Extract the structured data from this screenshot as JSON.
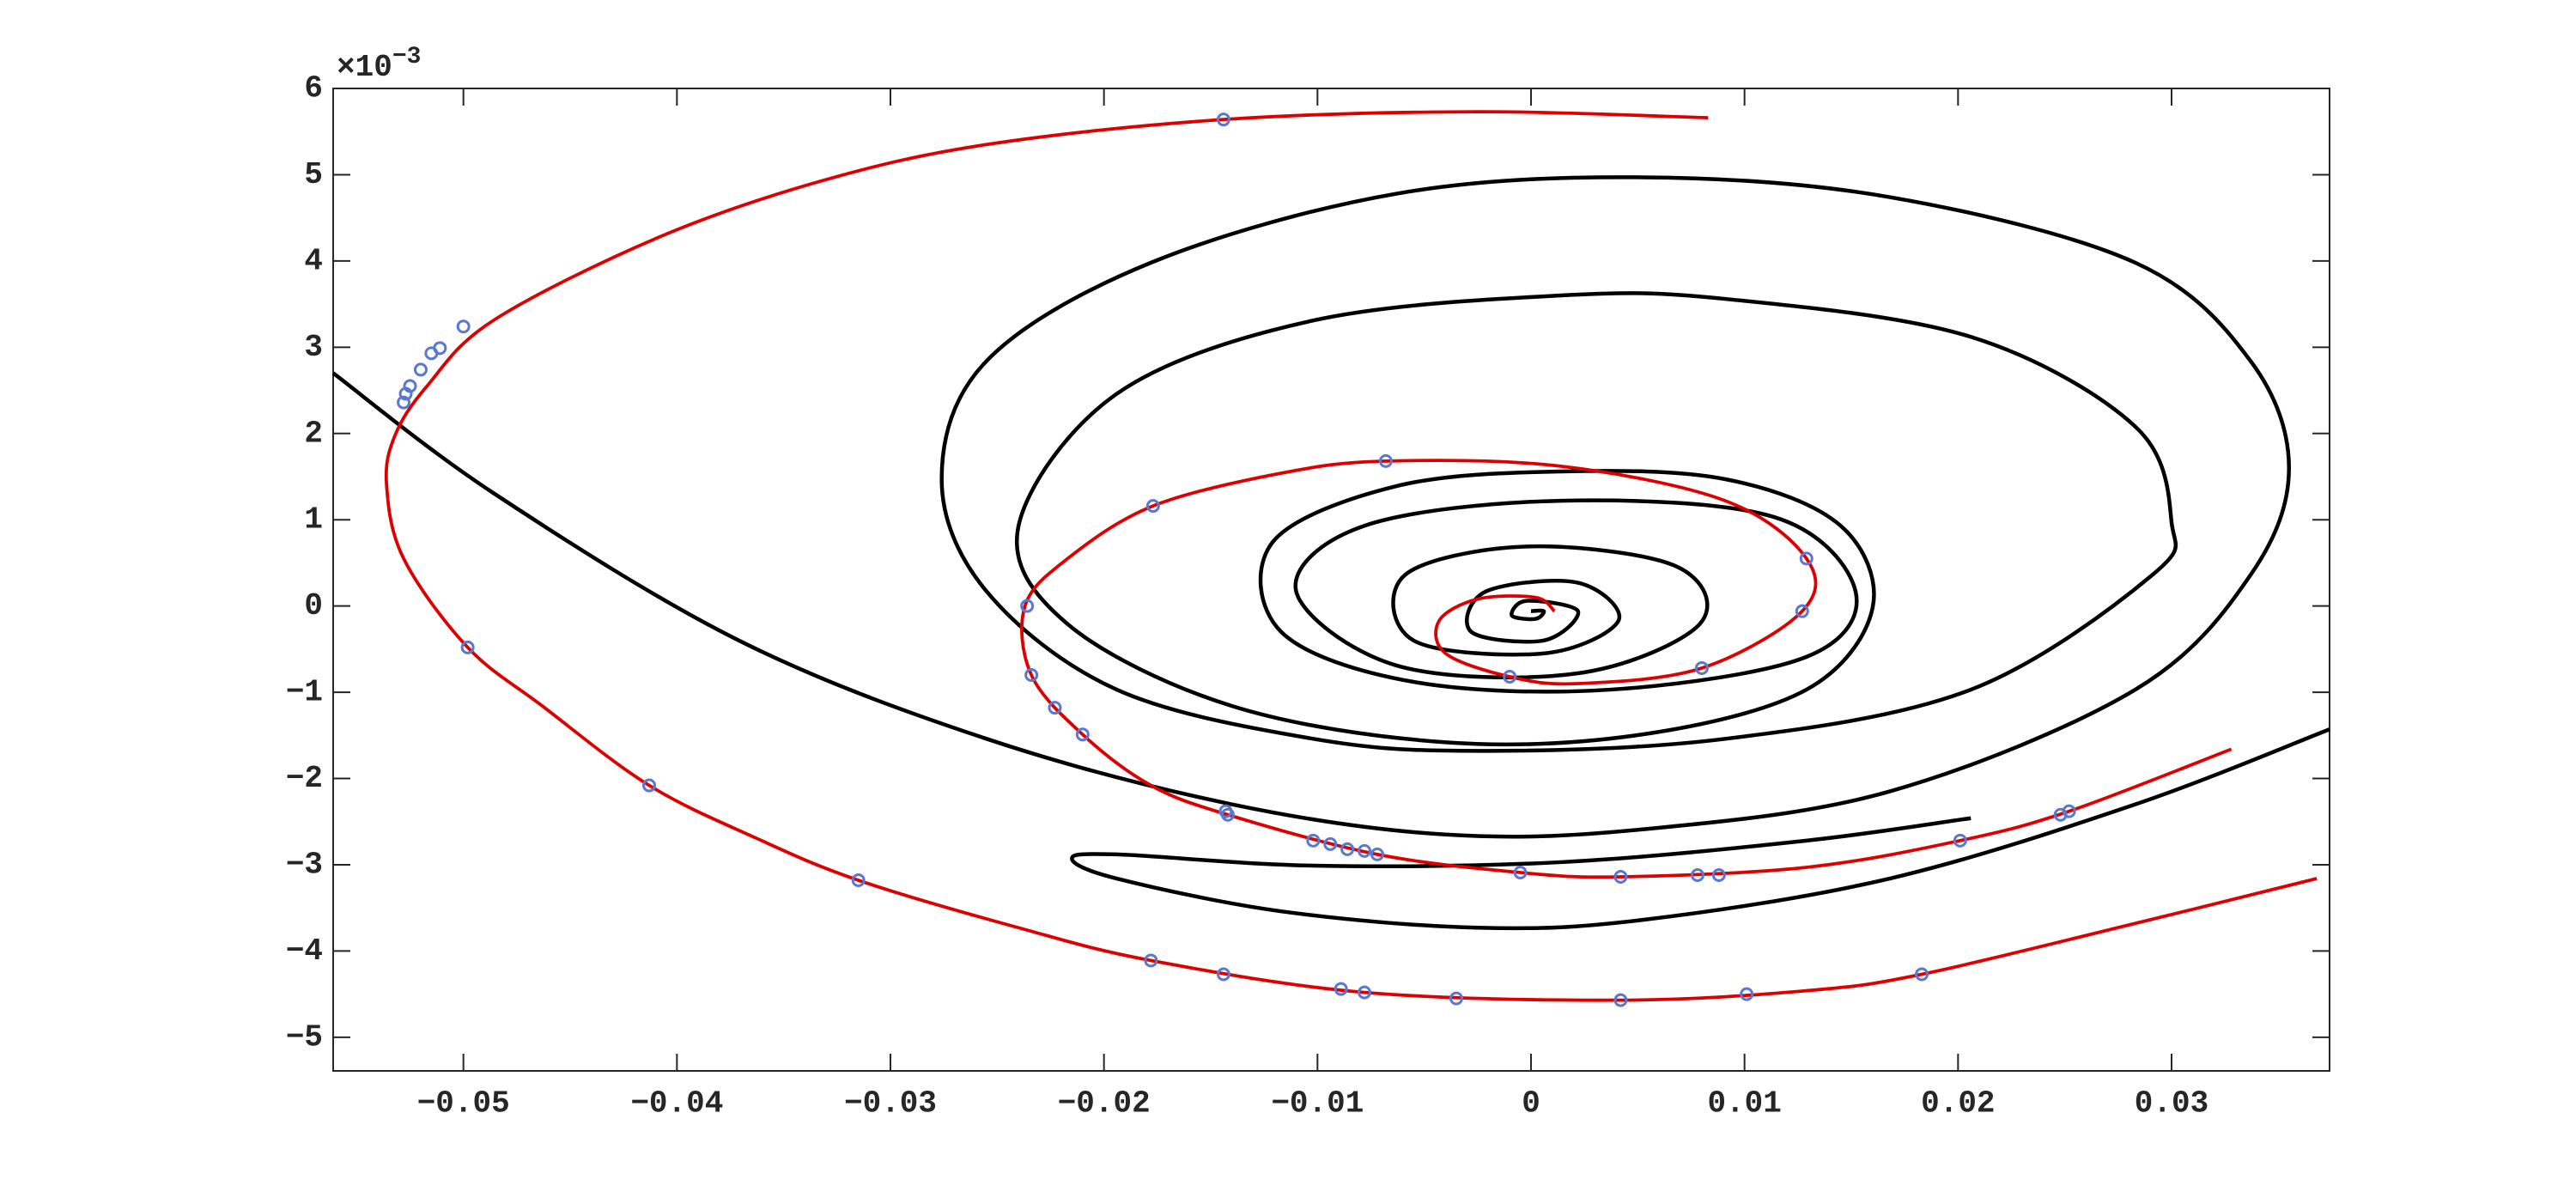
{
  "chart_data": {
    "type": "phase",
    "y_multiplier": {
      "base": "×10",
      "exponent": "−3"
    },
    "xlim": [
      -0.0561,
      0.0374
    ],
    "ylim": [
      -5.39,
      6
    ],
    "xticks": [
      {
        "value": -0.05,
        "label": "−0.05"
      },
      {
        "value": -0.04,
        "label": "−0.04"
      },
      {
        "value": -0.03,
        "label": "−0.03"
      },
      {
        "value": -0.02,
        "label": "−0.02"
      },
      {
        "value": -0.01,
        "label": "−0.01"
      },
      0,
      0.01,
      0.02,
      0.03
    ],
    "yticks": [
      {
        "value": -5,
        "label": "−5"
      },
      {
        "value": -4,
        "label": "−4"
      },
      {
        "value": -3,
        "label": "−3"
      },
      {
        "value": -2,
        "label": "−2"
      },
      {
        "value": -1,
        "label": "−1"
      },
      0,
      1,
      2,
      3,
      4,
      5,
      6
    ],
    "grid": false,
    "box": true,
    "series": [
      {
        "style": "line",
        "color": "#000000",
        "x": [
          -0.0561,
          -0.0486,
          -0.0371,
          -0.0255,
          -0.014,
          -0.004,
          0.0052,
          0.0168,
          0.0283,
          0.0337,
          0.0355,
          0.0337,
          0.0283,
          0.0168,
          0.0052,
          -0.0063,
          -0.0178,
          -0.0255,
          -0.0276,
          -0.0255,
          -0.0194,
          -0.0102,
          -0.0025,
          0.0091,
          0.0206,
          0.0291,
          0.03,
          0.0283,
          0.0206,
          0.0091,
          0.0014,
          -0.0102,
          -0.0194,
          -0.024,
          -0.0217,
          -0.014,
          -0.004,
          0.0052,
          0.0129,
          0.016,
          0.0145,
          0.0091,
          0.0014,
          -0.0063,
          -0.0121,
          -0.0117,
          -0.0055,
          0.0037,
          0.0129,
          0.0152,
          0.0114,
          0.0014,
          -0.0078,
          -0.011,
          -0.0063,
          0.0022,
          0.0079,
          0.0068,
          -0.0002,
          -0.0059,
          -0.0055,
          0.0006,
          0.0041,
          0.0022,
          -0.0021,
          -0.0028,
          0.0006,
          0.0022,
          -0.0002,
          -0.0009,
          0.0002,
          0.0006,
          0
        ],
        "y": [
          2.7,
          1.31,
          -0.4,
          -1.54,
          -2.3,
          -2.65,
          -2.59,
          -2.15,
          -0.97,
          0.36,
          1.6,
          2.84,
          3.98,
          4.74,
          4.97,
          4.78,
          3.98,
          2.84,
          1.47,
          0.17,
          -0.97,
          -1.54,
          -1.68,
          -1.54,
          -0.97,
          0.36,
          0.97,
          2.08,
          3.12,
          3.56,
          3.6,
          3.31,
          2.46,
          0.93,
          -0.21,
          -1.16,
          -1.58,
          -1.49,
          -0.97,
          -0.02,
          0.93,
          1.47,
          1.56,
          1.39,
          0.74,
          -0.3,
          -0.88,
          -0.97,
          -0.59,
          0.17,
          1.03,
          1.22,
          0.93,
          0.17,
          -0.69,
          -0.78,
          -0.21,
          0.46,
          0.69,
          0.36,
          -0.4,
          -0.55,
          -0.17,
          0.27,
          0.17,
          -0.3,
          -0.4,
          -0.06,
          0.06,
          -0.11,
          -0.15,
          -0.06,
          -0.06
        ]
      },
      {
        "style": "line",
        "color": "#000000",
        "x": [
          0.0374,
          0.0283,
          0.0168,
          0.0052,
          -0.0025,
          -0.0117,
          -0.0194,
          -0.0215,
          -0.0194,
          -0.0102,
          0.0014,
          0.0129,
          0.0206
        ],
        "y": [
          -1.43,
          -2.3,
          -3.16,
          -3.64,
          -3.73,
          -3.54,
          -3.16,
          -2.93,
          -2.88,
          -3.01,
          -2.97,
          -2.72,
          -2.46
        ]
      },
      {
        "style": "line",
        "color": "#dd0000",
        "x": [
          0.0083,
          -0.0025,
          -0.0144,
          -0.0255,
          -0.0332,
          -0.0409,
          -0.0486,
          -0.0517,
          -0.0532,
          -0.0536,
          -0.0528,
          -0.0498,
          -0.0463,
          -0.0413,
          -0.0363,
          -0.0315,
          -0.024,
          -0.0178,
          -0.0078,
          0.0042,
          0.0129,
          0.0183,
          0.0283,
          0.0368
        ],
        "y": [
          5.66,
          5.73,
          5.64,
          5.35,
          4.93,
          4.27,
          3.31,
          2.55,
          1.98,
          1.41,
          0.55,
          -0.48,
          -1.16,
          -2.08,
          -2.69,
          -3.18,
          -3.73,
          -4.11,
          -4.48,
          -4.57,
          -4.46,
          -4.27,
          -3.68,
          -3.16
        ]
      },
      {
        "style": "line",
        "color": "#dd0000",
        "x": [
          0.0328,
          0.0252,
          0.0201,
          0.0129,
          0.0042,
          -0.0005,
          -0.0072,
          -0.0142,
          -0.0178,
          -0.021,
          -0.0234,
          -0.0237,
          -0.0217,
          -0.0177,
          -0.0117,
          -0.0067,
          0.0014,
          0.0091,
          0.0129,
          0.0127,
          0.008,
          0.0022,
          -0.001,
          -0.004,
          -0.0043,
          -0.0025,
          0.0002,
          0.0011
        ],
        "y": [
          -1.66,
          -2.38,
          -2.72,
          -3.03,
          -3.14,
          -3.09,
          -2.88,
          -2.42,
          -2.08,
          -1.49,
          -0.8,
          0,
          0.55,
          1.16,
          1.54,
          1.68,
          1.62,
          1.22,
          0.55,
          -0.06,
          -0.72,
          -0.9,
          -0.82,
          -0.55,
          -0.17,
          0.08,
          0.1,
          -0.06
        ]
      },
      {
        "style": "markers",
        "color": "#5a78d0",
        "x": [
          -0.0144,
          -0.0068,
          -0.0177,
          -0.05,
          -0.0511,
          -0.0515,
          -0.052,
          -0.0525,
          -0.0527,
          -0.0528,
          -0.0236,
          -0.0234,
          -0.0223,
          -0.021,
          0.0129,
          0.0127,
          0.008,
          -0.001,
          -0.0498,
          -0.0413,
          -0.0315,
          -0.0178,
          -0.0144,
          -0.0143,
          -0.0142,
          -0.0102,
          -0.0094,
          -0.0086,
          -0.0078,
          -0.0072,
          -0.0005,
          0.0042,
          0.0078,
          0.0088,
          0.0201,
          0.0248,
          0.0252,
          -0.0089,
          -0.0078,
          -0.0035,
          0.0042,
          0.0101,
          0.0183
        ],
        "y": [
          5.64,
          1.68,
          1.16,
          3.24,
          2.99,
          2.93,
          2.74,
          2.55,
          2.46,
          2.36,
          0,
          -0.8,
          -1.18,
          -1.49,
          0.55,
          -0.06,
          -0.72,
          -0.82,
          -0.48,
          -2.08,
          -3.18,
          -4.11,
          -4.27,
          -2.38,
          -2.42,
          -2.72,
          -2.76,
          -2.82,
          -2.84,
          -2.88,
          -3.09,
          -3.14,
          -3.12,
          -3.12,
          -2.72,
          -2.42,
          -2.38,
          -4.44,
          -4.48,
          -4.55,
          -4.57,
          -4.5,
          -4.27
        ]
      }
    ]
  }
}
